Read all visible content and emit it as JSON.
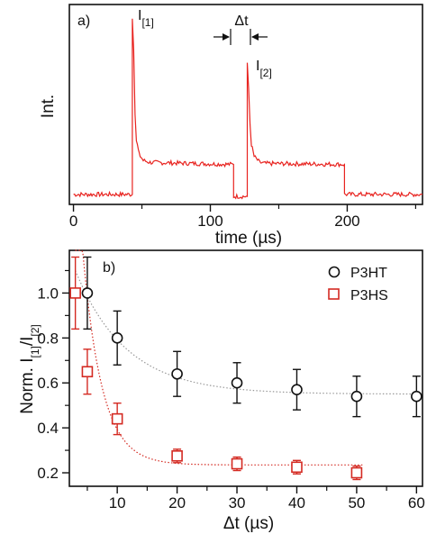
{
  "chart_data": [
    {
      "type": "line",
      "panel_label": "a)",
      "xlabel": "time (µs)",
      "ylabel": "Int.",
      "xlim": [
        -3,
        255
      ],
      "ylim": [
        0,
        1
      ],
      "xticks": [
        0,
        100,
        200
      ],
      "xtick_labels": [
        "0",
        "100",
        "200"
      ],
      "xtick_minor": [
        50,
        150,
        250
      ],
      "series": [
        {
          "color": "#e8231f",
          "points": [
            {
              "x": 0,
              "y": 0.05
            },
            {
              "x": 43,
              "y": 0.05
            },
            {
              "x": 43,
              "y": 0.93
            },
            {
              "x": 44,
              "y": 0.78
            },
            {
              "x": 45,
              "y": 0.46
            },
            {
              "x": 46,
              "y": 0.32
            },
            {
              "x": 48,
              "y": 0.25
            },
            {
              "x": 51,
              "y": 0.22
            },
            {
              "x": 56,
              "y": 0.21
            },
            {
              "x": 117,
              "y": 0.2
            },
            {
              "x": 117,
              "y": 0.04
            },
            {
              "x": 127,
              "y": 0.04
            },
            {
              "x": 127,
              "y": 0.7
            },
            {
              "x": 128,
              "y": 0.58
            },
            {
              "x": 129,
              "y": 0.4
            },
            {
              "x": 130,
              "y": 0.3
            },
            {
              "x": 132,
              "y": 0.24
            },
            {
              "x": 136,
              "y": 0.21
            },
            {
              "x": 140,
              "y": 0.205
            },
            {
              "x": 198,
              "y": 0.2
            },
            {
              "x": 198,
              "y": 0.05
            },
            {
              "x": 255,
              "y": 0.05
            }
          ]
        }
      ],
      "annotations": {
        "peak1": "I[1]",
        "peak2": "I[2]",
        "interval": "Δt"
      }
    },
    {
      "type": "scatter",
      "panel_label": "b)",
      "xlabel": "Δt (µs)",
      "ylabel": "Norm. I[1]/I[2]",
      "xlim": [
        2,
        61
      ],
      "ylim": [
        0.14,
        1.19
      ],
      "xticks": [
        10,
        20,
        30,
        40,
        50,
        60
      ],
      "xtick_labels": [
        "10",
        "20",
        "30",
        "40",
        "50",
        "60"
      ],
      "yticks": [
        0.2,
        0.4,
        0.6,
        0.8,
        1.0
      ],
      "ytick_labels": [
        "0.2",
        "0.4",
        "0.6",
        "0.8",
        "1.0"
      ],
      "legend_position": "top-right",
      "series": [
        {
          "name": "P3HT",
          "marker": "circle",
          "color": "#111111",
          "fit_color": "#999999",
          "points": [
            {
              "x": 5,
              "y": 1.0,
              "err": 0.16
            },
            {
              "x": 10,
              "y": 0.8,
              "err": 0.12
            },
            {
              "x": 20,
              "y": 0.64,
              "err": 0.1
            },
            {
              "x": 30,
              "y": 0.6,
              "err": 0.09
            },
            {
              "x": 40,
              "y": 0.57,
              "err": 0.09
            },
            {
              "x": 50,
              "y": 0.54,
              "err": 0.09
            },
            {
              "x": 60,
              "y": 0.54,
              "err": 0.09
            }
          ],
          "fit": {
            "model": "exponential",
            "offset": 0.55,
            "amplitude": 0.55,
            "tau": 8.5,
            "x_from": 3,
            "x_to": 61
          }
        },
        {
          "name": "P3HS",
          "marker": "square",
          "color": "#d42a22",
          "fit_color": "#d42a22",
          "points": [
            {
              "x": 3,
              "y": 1.0,
              "err": 0.16
            },
            {
              "x": 5,
              "y": 0.65,
              "err": 0.1
            },
            {
              "x": 10,
              "y": 0.44,
              "err": 0.07
            },
            {
              "x": 20,
              "y": 0.275,
              "err": 0.03
            },
            {
              "x": 30,
              "y": 0.24,
              "err": 0.03
            },
            {
              "x": 40,
              "y": 0.225,
              "err": 0.03
            },
            {
              "x": 50,
              "y": 0.2,
              "err": 0.03
            }
          ],
          "fit": {
            "model": "exponential",
            "offset": 0.235,
            "amplitude": 1.4,
            "tau": 3.2,
            "x_from": 3,
            "x_to": 51
          }
        }
      ]
    }
  ]
}
